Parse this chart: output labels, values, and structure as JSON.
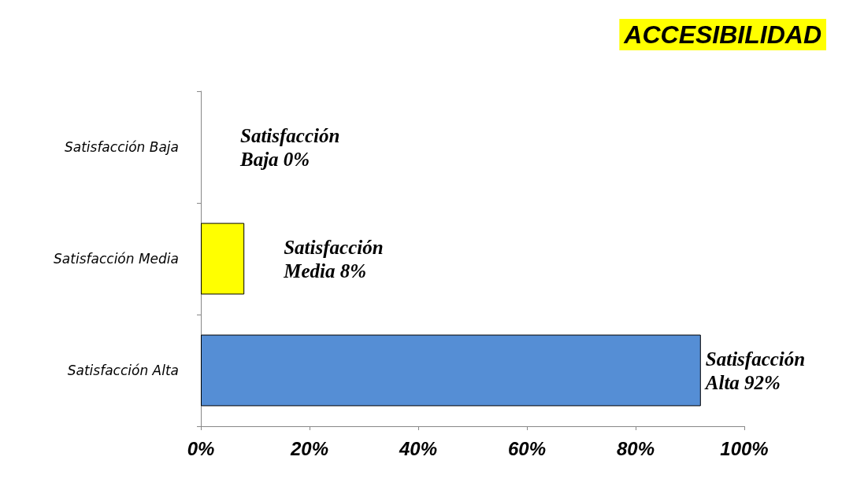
{
  "chart_data": {
    "type": "bar",
    "orientation": "horizontal",
    "title": "ACCESIBILIDAD",
    "categories": [
      "Satisfacción Baja",
      "Satisfacción Media",
      "Satisfacción Alta"
    ],
    "values": [
      0,
      8,
      92
    ],
    "colors": [
      "#ffff00",
      "#ffff00",
      "#558ed5"
    ],
    "value_labels": [
      "Satisfacción Baja 0%",
      "Satisfacción Media 8%",
      "Satisfacción Alta 92%"
    ],
    "xlim": [
      0,
      100
    ],
    "xticks": [
      {
        "value": 0,
        "label": "0%"
      },
      {
        "value": 20,
        "label": "20%"
      },
      {
        "value": 40,
        "label": "40%"
      },
      {
        "value": 60,
        "label": "60%"
      },
      {
        "value": 80,
        "label": "80%"
      },
      {
        "value": 100,
        "label": "100%"
      }
    ],
    "grid": false
  }
}
